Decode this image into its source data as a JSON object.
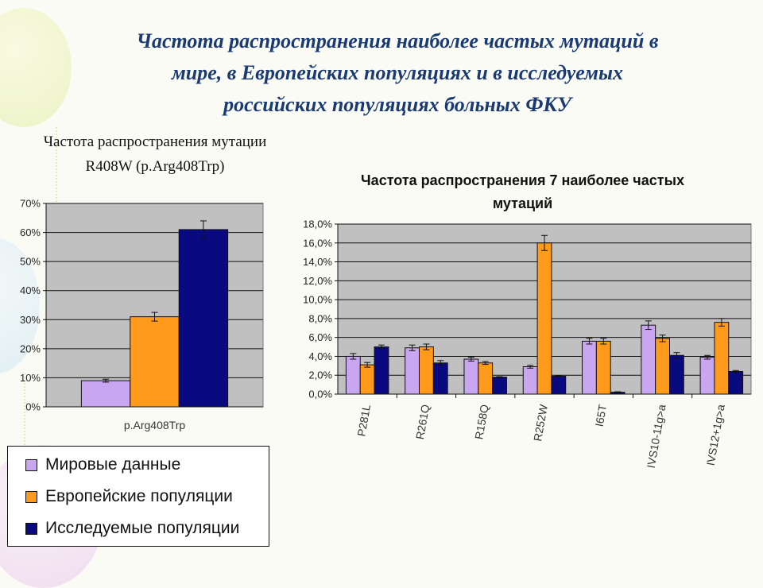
{
  "slide": {
    "title_lines": [
      "Частота распространения наиболее частых мутаций в",
      "мире, в Европейских популяциях и в исследуемых",
      "российских популяциях больных ФКУ"
    ]
  },
  "colors": {
    "world": "#c9a6f0",
    "europe": "#ff9a1a",
    "studied": "#0a0a80",
    "plot_bg": "#c0c0c0",
    "title": "#1a3a73"
  },
  "legend": {
    "items": [
      {
        "label": "Мировые данные",
        "color": "#c9a6f0"
      },
      {
        "label": "Европейские популяции",
        "color": "#ff9a1a"
      },
      {
        "label": "Исследуемые популяции",
        "color": "#0a0a80"
      }
    ]
  },
  "chart_data": [
    {
      "type": "bar",
      "title": "Частота распространения мутации R408W (p.Arg408Trp)",
      "title_lines": [
        "Частота распространения мутации",
        "R408W (p.Arg408Trp)"
      ],
      "categories": [
        "p.Arg408Trp"
      ],
      "ylim": [
        0,
        70
      ],
      "yticks": [
        "0%",
        "10%",
        "20%",
        "30%",
        "40%",
        "50%",
        "60%",
        "70%"
      ],
      "grid": true,
      "legend": "bottom",
      "series": [
        {
          "name": "Мировые данные",
          "values": [
            9
          ],
          "errors": [
            0.5
          ]
        },
        {
          "name": "Европейские популяции",
          "values": [
            31
          ],
          "errors": [
            1.5
          ]
        },
        {
          "name": "Исследуемые популяции",
          "values": [
            61
          ],
          "errors": [
            3
          ]
        }
      ]
    },
    {
      "type": "bar",
      "title": "Частота распространения 7 наиболее частых мутаций",
      "title_lines": [
        "Частота распространения 7 наиболее частых",
        "мутаций"
      ],
      "categories": [
        "P281L",
        "R261Q",
        "R158Q",
        "R252W",
        "I65T",
        "IVS10-11g>a",
        "IVS12+1g>a"
      ],
      "ylim": [
        0,
        18
      ],
      "yticks": [
        "0,0%",
        "2,0%",
        "4,0%",
        "6,0%",
        "8,0%",
        "10,0%",
        "12,0%",
        "14,0%",
        "16,0%",
        "18,0%"
      ],
      "grid": true,
      "series": [
        {
          "name": "Мировые данные",
          "values": [
            4.0,
            4.9,
            3.7,
            2.9,
            5.6,
            7.3,
            3.9
          ],
          "errors": [
            0.3,
            0.3,
            0.2,
            0.15,
            0.3,
            0.45,
            0.2
          ]
        },
        {
          "name": "Европейские популяции",
          "values": [
            3.1,
            5.0,
            3.3,
            16.0,
            5.6,
            5.9,
            7.6
          ],
          "errors": [
            0.25,
            0.3,
            0.15,
            0.8,
            0.3,
            0.35,
            0.4
          ]
        },
        {
          "name": "Исследуемые популяции",
          "values": [
            5.0,
            3.3,
            1.8,
            1.9,
            0.2,
            4.1,
            2.4
          ],
          "errors": [
            0.2,
            0.25,
            0.05,
            0.05,
            0.05,
            0.3,
            0.1
          ]
        }
      ]
    }
  ]
}
